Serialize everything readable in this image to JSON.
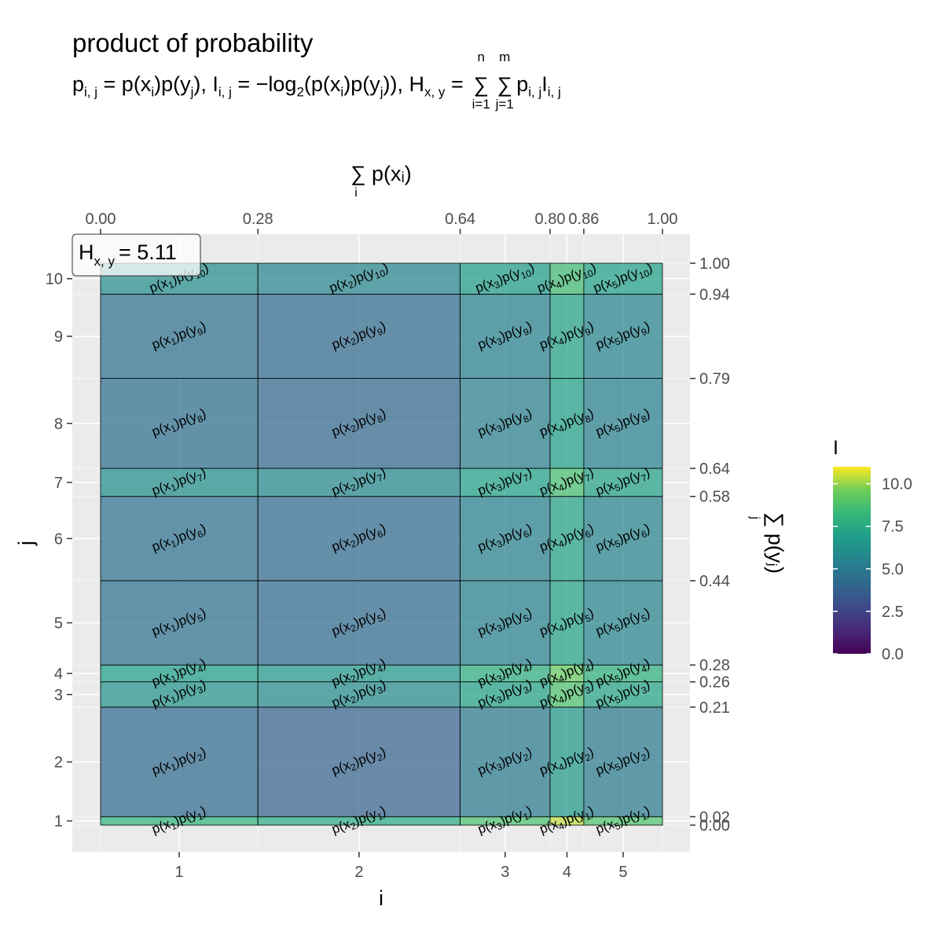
{
  "title": "product of probability",
  "subtitle": {
    "p": "p",
    "ij": "i, j",
    "eq_px": " = p(x",
    "sub_i": "i",
    "mid1": ")p(y",
    "sub_j": "j",
    "mid2": "), I",
    "eq_log": " = −log",
    "two": "2",
    "log_open": "(p(x",
    "log_close": ")p(y",
    "tail": "))",
    "comma_h": ", H",
    "xy": "x, y",
    "eq": " = ",
    "sum1_top": "n",
    "sum1_bot": "i=1",
    "sum2_top": "m",
    "sum2_bot": "j=1",
    "pI": "p",
    "I_letter": "I"
  },
  "chart_data": {
    "type": "heatmap",
    "title": "product of probability",
    "xlabel": "i",
    "ylabel": "j",
    "x2label": "∑ p(xᵢ)",
    "x2label_sub": "i",
    "y2label": "∑ p(yⱼ)",
    "y2label_sub": "j",
    "legend_title": "I",
    "legend_ticks": [
      0.0,
      2.5,
      5.0,
      7.5,
      10.0
    ],
    "legend_range": [
      0,
      11
    ],
    "legend_placement": "right",
    "annotation": "H",
    "annotation_sub": "x, y",
    "annotation_value": "= 5.11",
    "x_ticks_bottom": [
      1,
      2,
      3,
      4,
      5
    ],
    "y_ticks_left": [
      1,
      2,
      3,
      4,
      5,
      6,
      7,
      8,
      9,
      10
    ],
    "x_cum_ticks": [
      "0.00",
      "0.28",
      "0.64",
      "0.80",
      "0.86",
      "1.00"
    ],
    "y_cum_ticks": [
      "0.00",
      "0.02",
      "0.21",
      "0.26",
      "0.28",
      "0.44",
      "0.58",
      "0.64",
      "0.79",
      "0.94",
      "1.00"
    ],
    "px": [
      0.28,
      0.36,
      0.16,
      0.05,
      0.15
    ],
    "py": [
      0.015,
      0.195,
      0.045,
      0.03,
      0.15,
      0.15,
      0.05,
      0.16,
      0.15,
      0.055
    ],
    "x_cum": [
      0,
      0.28,
      0.64,
      0.8,
      0.86,
      1.0
    ],
    "y_cum": [
      0,
      0.015,
      0.21,
      0.255,
      0.285,
      0.435,
      0.585,
      0.635,
      0.795,
      0.945,
      1.0
    ],
    "x_centers": [
      1,
      2,
      3,
      4,
      5
    ],
    "y_centers": [
      1,
      2,
      3,
      4,
      5,
      6,
      7,
      8,
      9,
      10
    ],
    "grid": true
  }
}
